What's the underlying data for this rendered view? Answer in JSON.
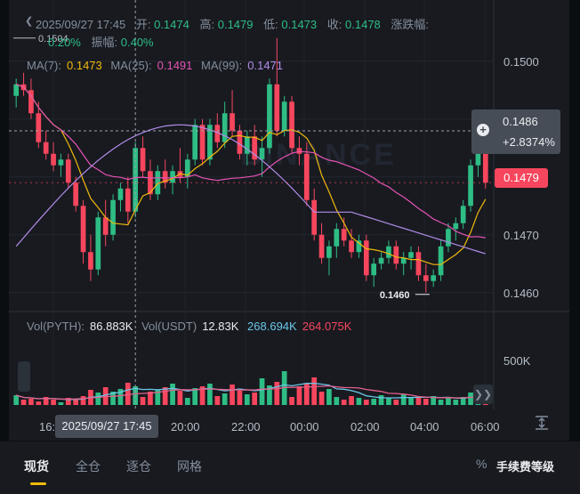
{
  "header": {
    "datetime": "2025/09/27 17:45",
    "open_label": "开:",
    "open": "0.1474",
    "high_label": "高:",
    "high": "0.1479",
    "low_label": "低:",
    "low": "0.1473",
    "close_label": "收:",
    "close": "0.1478",
    "change_label": "涨跌幅:",
    "change": "0.20%",
    "amplitude_label": "振幅:",
    "amplitude": "0.40%",
    "high_mark": "0.1504",
    "low_mark": "0.1460"
  },
  "ma": {
    "ma7_label": "MA(7):",
    "ma7": "0.1473",
    "ma25_label": "MA(25):",
    "ma25": "0.1491",
    "ma99_label": "MA(99):",
    "ma99": "0.1471"
  },
  "volume": {
    "vol_pyth_label": "Vol(PYTH):",
    "vol_pyth": "86.883K",
    "vol_usdt_label": "Vol(USDT)",
    "vol_usdt": "12.83K",
    "ma_a": "268.694K",
    "ma_b": "264.075K",
    "axis_label": "500K"
  },
  "price_axis": [
    "0.1500",
    "0.1490",
    "0.1480",
    "0.1470",
    "0.1460"
  ],
  "time_axis": [
    "16:",
    "20:00",
    "22:00",
    "00:00",
    "02:00",
    "04:00",
    "06:00"
  ],
  "crosshair": {
    "price": "0.1486",
    "change": "+2.8374%",
    "time": "2025/09/27 17:45"
  },
  "current_price": "0.1479",
  "watermark": "BINANCE",
  "colors": {
    "up": "#2ebd85",
    "down": "#f6465d",
    "ma7": "#f0b90b",
    "ma25": "#e553b5",
    "ma99": "#b18ce8"
  },
  "tabs": [
    "现货",
    "全仓",
    "逐仓",
    "网格"
  ],
  "fee_label": "手续费等级",
  "percent_icon": "%",
  "chart_data": {
    "type": "candlestick",
    "candles": [
      [
        0.1494,
        0.1497,
        0.1492,
        0.1496
      ],
      [
        0.1496,
        0.1498,
        0.1494,
        0.1495
      ],
      [
        0.1495,
        0.1497,
        0.149,
        0.1491
      ],
      [
        0.1491,
        0.1493,
        0.1485,
        0.1486
      ],
      [
        0.1486,
        0.1488,
        0.1483,
        0.1484
      ],
      [
        0.1484,
        0.1486,
        0.1481,
        0.1482
      ],
      [
        0.1482,
        0.1484,
        0.148,
        0.1483
      ],
      [
        0.1483,
        0.1484,
        0.1478,
        0.1479
      ],
      [
        0.1479,
        0.148,
        0.1474,
        0.1475
      ],
      [
        0.1475,
        0.1476,
        0.1465,
        0.1467
      ],
      [
        0.1467,
        0.147,
        0.1462,
        0.1464
      ],
      [
        0.1464,
        0.1474,
        0.1463,
        0.1473
      ],
      [
        0.1473,
        0.1476,
        0.1468,
        0.147
      ],
      [
        0.147,
        0.1477,
        0.1469,
        0.1476
      ],
      [
        0.1476,
        0.1479,
        0.1474,
        0.1478
      ],
      [
        0.1478,
        0.148,
        0.1472,
        0.1474
      ],
      [
        0.1474,
        0.1486,
        0.1473,
        0.1485
      ],
      [
        0.1485,
        0.1487,
        0.148,
        0.1481
      ],
      [
        0.1481,
        0.1483,
        0.1476,
        0.1477
      ],
      [
        0.1477,
        0.1482,
        0.1476,
        0.1481
      ],
      [
        0.1481,
        0.1483,
        0.1478,
        0.1479
      ],
      [
        0.1479,
        0.1482,
        0.1477,
        0.1481
      ],
      [
        0.1481,
        0.1485,
        0.1479,
        0.148
      ],
      [
        0.148,
        0.1484,
        0.1478,
        0.1483
      ],
      [
        0.1483,
        0.149,
        0.1482,
        0.1489
      ],
      [
        0.1489,
        0.149,
        0.1482,
        0.1483
      ],
      [
        0.1483,
        0.149,
        0.1482,
        0.1489
      ],
      [
        0.1489,
        0.1491,
        0.1485,
        0.1486
      ],
      [
        0.1486,
        0.1493,
        0.1485,
        0.1491
      ],
      [
        0.1491,
        0.1495,
        0.1487,
        0.1488
      ],
      [
        0.1488,
        0.1489,
        0.1483,
        0.1484
      ],
      [
        0.1484,
        0.1488,
        0.1482,
        0.1487
      ],
      [
        0.1487,
        0.1489,
        0.1482,
        0.1483
      ],
      [
        0.1483,
        0.1487,
        0.148,
        0.1485
      ],
      [
        0.1485,
        0.1497,
        0.1484,
        0.1496
      ],
      [
        0.1496,
        0.1504,
        0.1487,
        0.1488
      ],
      [
        0.1488,
        0.1494,
        0.1487,
        0.1493
      ],
      [
        0.1493,
        0.1494,
        0.1484,
        0.1485
      ],
      [
        0.1485,
        0.1487,
        0.1482,
        0.1484
      ],
      [
        0.1484,
        0.1486,
        0.1475,
        0.1476
      ],
      [
        0.1476,
        0.1478,
        0.1469,
        0.147
      ],
      [
        0.147,
        0.1472,
        0.1465,
        0.1466
      ],
      [
        0.1466,
        0.1469,
        0.1463,
        0.1468
      ],
      [
        0.1468,
        0.1472,
        0.1466,
        0.1471
      ],
      [
        0.1471,
        0.1473,
        0.1468,
        0.1469
      ],
      [
        0.1469,
        0.1471,
        0.1466,
        0.1467
      ],
      [
        0.1467,
        0.147,
        0.1466,
        0.1469
      ],
      [
        0.1469,
        0.147,
        0.1462,
        0.1463
      ],
      [
        0.1463,
        0.1466,
        0.1461,
        0.1465
      ],
      [
        0.1465,
        0.1467,
        0.1464,
        0.1466
      ],
      [
        0.1466,
        0.1469,
        0.1465,
        0.1468
      ],
      [
        0.1468,
        0.1469,
        0.1464,
        0.1465
      ],
      [
        0.1465,
        0.1467,
        0.1463,
        0.1466
      ],
      [
        0.1466,
        0.1468,
        0.1464,
        0.1467
      ],
      [
        0.1467,
        0.1468,
        0.1462,
        0.1463
      ],
      [
        0.1463,
        0.1465,
        0.146,
        0.1462
      ],
      [
        0.1462,
        0.1464,
        0.1461,
        0.1463
      ],
      [
        0.1463,
        0.1469,
        0.1462,
        0.1468
      ],
      [
        0.1468,
        0.1472,
        0.1467,
        0.1471
      ],
      [
        0.1471,
        0.1473,
        0.1469,
        0.1472
      ],
      [
        0.1472,
        0.1476,
        0.1471,
        0.1475
      ],
      [
        0.1475,
        0.1483,
        0.1474,
        0.1482
      ],
      [
        0.1482,
        0.1488,
        0.148,
        0.1486
      ],
      [
        0.1486,
        0.1487,
        0.1478,
        0.1479
      ]
    ],
    "volumes": [
      110,
      60,
      70,
      40,
      90,
      60,
      30,
      80,
      70,
      100,
      170,
      140,
      200,
      150,
      180,
      250,
      210,
      90,
      150,
      170,
      200,
      240,
      160,
      80,
      190,
      210,
      240,
      100,
      130,
      230,
      160,
      120,
      140,
      300,
      220,
      260,
      380,
      90,
      210,
      240,
      310,
      150,
      180,
      90,
      60,
      100,
      80,
      60,
      70,
      110,
      80,
      60,
      120,
      90,
      80,
      70,
      100,
      60,
      80,
      60,
      90,
      140,
      160,
      150
    ],
    "ylim": [
      0.14575,
      0.15075
    ]
  }
}
